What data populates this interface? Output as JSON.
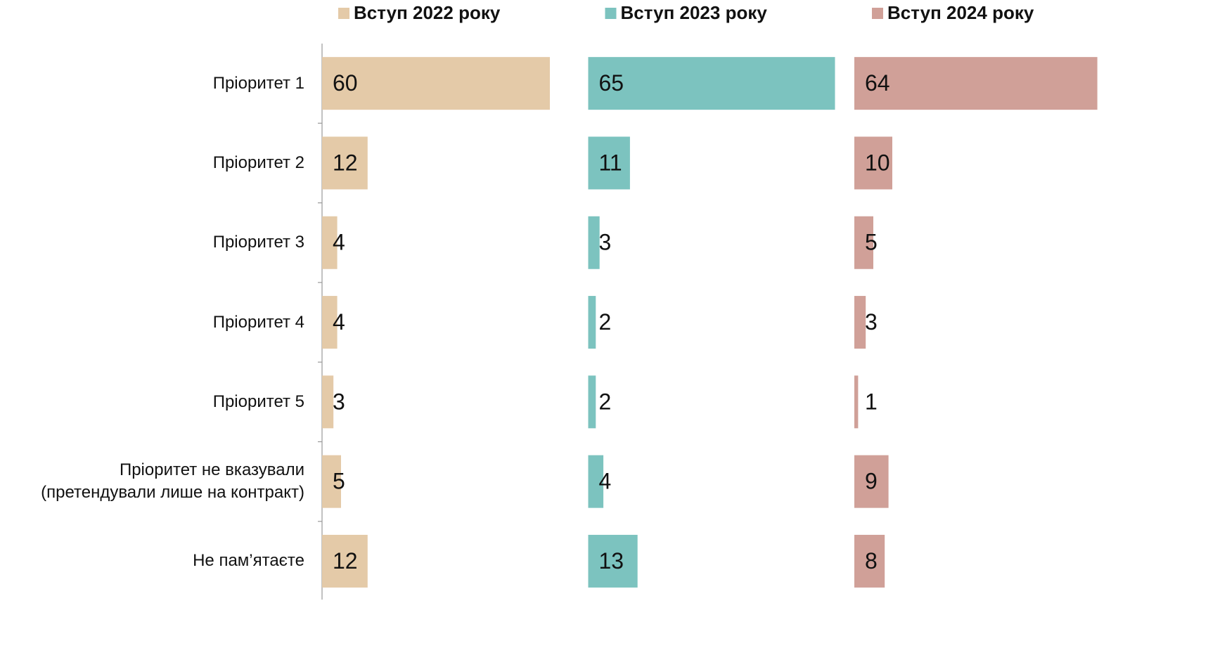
{
  "chart_data": {
    "type": "bar",
    "orientation": "horizontal",
    "categories": [
      "Пріоритет 1",
      "Пріоритет 2",
      "Пріоритет 3",
      "Пріоритет 4",
      "Пріоритет 5",
      "Пріоритет не вказували\n(претендували лише на контракт)",
      "Не пам’ятаєте"
    ],
    "series": [
      {
        "name": "Вступ 2022 року",
        "color": "#e4caa8",
        "values": [
          60,
          12,
          4,
          4,
          3,
          5,
          12
        ]
      },
      {
        "name": "Вступ 2023 року",
        "color": "#7cc3bf",
        "values": [
          65,
          11,
          3,
          2,
          2,
          4,
          13
        ]
      },
      {
        "name": "Вступ 2024 року",
        "color": "#d0a098",
        "values": [
          64,
          10,
          5,
          3,
          1,
          9,
          8
        ]
      }
    ],
    "xlim": [
      0,
      70
    ]
  }
}
